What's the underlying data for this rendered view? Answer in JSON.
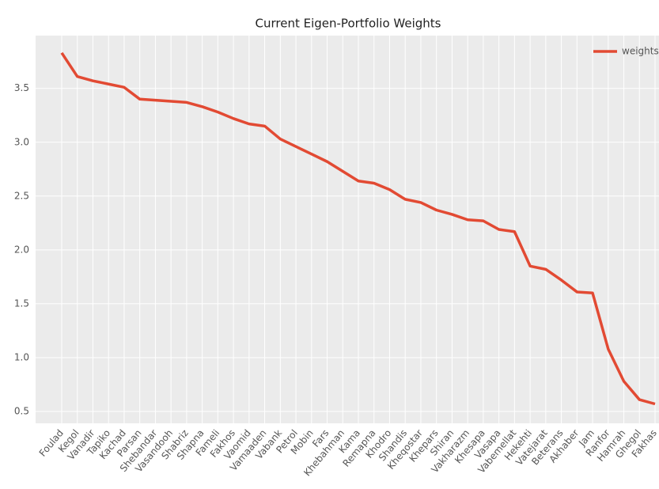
{
  "chart_data": {
    "type": "line",
    "title": "Current Eigen-Portfolio Weights",
    "categories": [
      "Foulad",
      "Kegol",
      "Vanadir",
      "Tapiko",
      "Kachad",
      "Parsan",
      "Shebandar",
      "Vasandooh",
      "Shabriz",
      "Shapna",
      "Fameli",
      "Fakhos",
      "Vaomid",
      "Vamaaden",
      "Vabank",
      "Petrol",
      "Mobin",
      "Fars",
      "Khebahman",
      "Kama",
      "Remapna",
      "Khodro",
      "Shandis",
      "Kheqostar",
      "Khepars",
      "Shiran",
      "Vakharazm",
      "Khesapa",
      "Vasapa",
      "Vabemellat",
      "Hekehti",
      "Vatejarat",
      "Beterans",
      "Akhaber",
      "Jam",
      "Ranfor",
      "Hamrah",
      "Ghegol",
      "Fakhas"
    ],
    "series": [
      {
        "name": "weights",
        "color": "#e24a33",
        "values": [
          3.83,
          3.61,
          3.57,
          3.54,
          3.51,
          3.4,
          3.39,
          3.38,
          3.37,
          3.33,
          3.28,
          3.22,
          3.17,
          3.15,
          3.03,
          2.96,
          2.89,
          2.82,
          2.73,
          2.64,
          2.62,
          2.56,
          2.47,
          2.44,
          2.37,
          2.33,
          2.28,
          2.27,
          2.19,
          2.17,
          1.85,
          1.82,
          1.72,
          1.61,
          1.6,
          1.08,
          0.78,
          0.61,
          0.57
        ]
      }
    ],
    "ylim": [
      0.39,
      3.99
    ],
    "yticks": [
      0.5,
      {
        "value": 1,
        "label": "1.0"
      },
      1.5,
      {
        "value": 2,
        "label": "2.0"
      },
      2.5,
      {
        "value": 3,
        "label": "3.0"
      },
      3.5
    ],
    "grid": true,
    "legend": "upper right"
  }
}
